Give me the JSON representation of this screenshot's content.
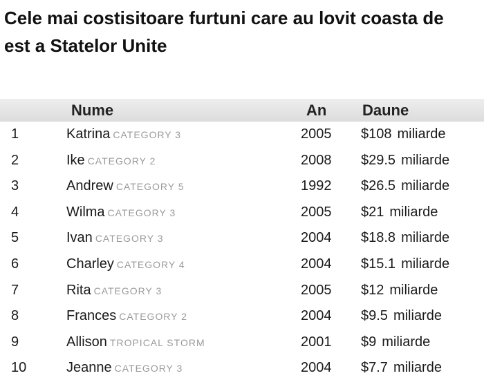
{
  "title": "Cele mai costisitoare furtuni care au lovit coasta de est a Statelor Unite",
  "table": {
    "headers": {
      "rank": "",
      "name": "Nume",
      "year": "An",
      "damage": "Daune"
    },
    "rows": [
      {
        "rank": "1",
        "name": "Katrina",
        "category": "CATEGORY 3",
        "year": "2005",
        "amount": "$108",
        "unit": "miliarde"
      },
      {
        "rank": "2",
        "name": "Ike",
        "category": "CATEGORY 2",
        "year": "2008",
        "amount": "$29.5",
        "unit": "miliarde"
      },
      {
        "rank": "3",
        "name": "Andrew",
        "category": "CATEGORY 5",
        "year": "1992",
        "amount": "$26.5",
        "unit": "miliarde"
      },
      {
        "rank": "4",
        "name": "Wilma",
        "category": "CATEGORY 3",
        "year": "2005",
        "amount": "$21",
        "unit": "miliarde"
      },
      {
        "rank": "5",
        "name": "Ivan",
        "category": "CATEGORY 3",
        "year": "2004",
        "amount": "$18.8",
        "unit": "miliarde"
      },
      {
        "rank": "6",
        "name": "Charley",
        "category": "CATEGORY 4",
        "year": "2004",
        "amount": "$15.1",
        "unit": "miliarde"
      },
      {
        "rank": "7",
        "name": "Rita",
        "category": "CATEGORY 3",
        "year": "2005",
        "amount": "$12",
        "unit": "miliarde"
      },
      {
        "rank": "8",
        "name": "Frances",
        "category": "CATEGORY 2",
        "year": "2004",
        "amount": "$9.5",
        "unit": "miliarde"
      },
      {
        "rank": "9",
        "name": "Allison",
        "category": "TROPICAL STORM",
        "year": "2001",
        "amount": "$9",
        "unit": "miliarde"
      },
      {
        "rank": "10",
        "name": "Jeanne",
        "category": "CATEGORY 3",
        "year": "2004",
        "amount": "$7.7",
        "unit": "miliarde"
      }
    ]
  },
  "colors": {
    "header_background": "#e4e4e4",
    "category_text": "#9a9a9a",
    "main_text": "#1a1a1a"
  }
}
